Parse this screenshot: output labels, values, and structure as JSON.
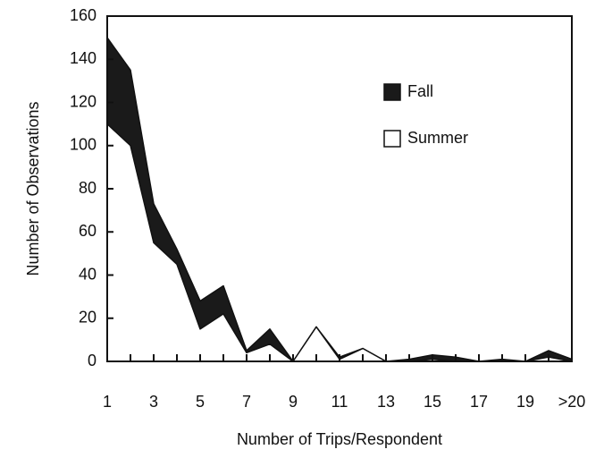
{
  "chart_data": {
    "type": "area",
    "x_label": "Number of Trips/Respondent",
    "y_label": "Number of Observations",
    "categories": [
      "1",
      null,
      "3",
      null,
      "5",
      null,
      "7",
      null,
      "9",
      null,
      "11",
      null,
      "13",
      null,
      "15",
      null,
      "17",
      null,
      "19",
      null,
      ">20"
    ],
    "series": [
      {
        "name": "Fall",
        "color": "#1a1a1a",
        "values": [
          150,
          135,
          73,
          52,
          28,
          35,
          5,
          15,
          0,
          16,
          2,
          6,
          0,
          1,
          3,
          2,
          0,
          1,
          0,
          5,
          1
        ]
      },
      {
        "name": "Summer",
        "color": "#ffffff",
        "values": [
          110,
          100,
          55,
          45,
          15,
          22,
          4,
          8,
          0,
          16,
          1,
          6,
          0,
          0,
          1,
          0,
          0,
          0,
          0,
          2,
          0
        ]
      }
    ],
    "ylim": [
      0,
      160
    ],
    "yticks": [
      0,
      20,
      40,
      60,
      80,
      100,
      120,
      140,
      160
    ],
    "legend": "upper right"
  }
}
